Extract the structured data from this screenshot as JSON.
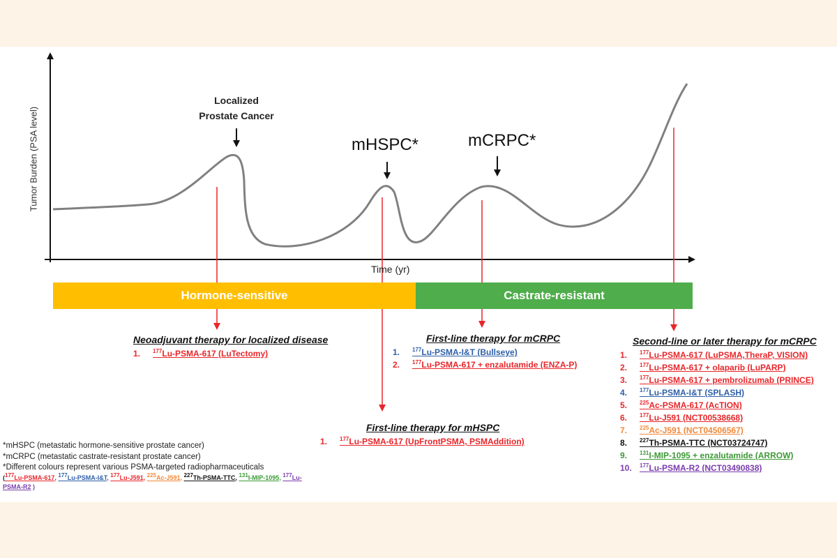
{
  "axis": {
    "ylabel": "Tumor Burden (PSA level)",
    "xlabel": "Time (yr)"
  },
  "phases": {
    "localized": "Localized\nProstate Cancer",
    "mhspc": "mHSPC*",
    "mcrpc": "mCRPC*"
  },
  "bars": {
    "hormone_sensitive": "Hormone-sensitive",
    "castrate_resistant": "Castrate-resistant"
  },
  "colors": {
    "hormone_bar": "#ffbf00",
    "castrate_bar": "#4fad4b",
    "arrow": "#e8262a",
    "red": "#e8262a",
    "blue": "#2e5fa8",
    "orange": "#f0883a",
    "black": "#111111",
    "green": "#3c9a35",
    "purple": "#7a3cac"
  },
  "sections": {
    "neoadjuvant": {
      "heading": "Neoadjuvant therapy for localized disease",
      "items": [
        {
          "num": "1.",
          "sup": "177",
          "text": "Lu-PSMA-617 (LuTectomy)",
          "color": "red"
        }
      ]
    },
    "first_line_mcrpc": {
      "heading": "First-line therapy for mCRPC",
      "items": [
        {
          "num": "1.",
          "sup": "177",
          "text": "Lu-PSMA-I&T (Bullseye)",
          "color": "blue"
        },
        {
          "num": "2.",
          "sup": "177",
          "text": "Lu-PSMA-617 + enzalutamide (ENZA-P)",
          "color": "red"
        }
      ]
    },
    "first_line_mhspc": {
      "heading": "First-line therapy for mHSPC",
      "items": [
        {
          "num": "1.",
          "sup": "177",
          "text": "Lu-PSMA-617 (UpFrontPSMA, PSMAddition)",
          "color": "red"
        }
      ]
    },
    "second_line_mcrpc": {
      "heading": "Second-line or later therapy for mCRPC",
      "items": [
        {
          "num": "1.",
          "sup": "177",
          "text": "Lu-PSMA-617 (LuPSMA,TheraP, VISION)",
          "color": "red"
        },
        {
          "num": "2.",
          "sup": "177",
          "text": "Lu-PSMA-617 + olaparib (LuPARP)",
          "color": "red"
        },
        {
          "num": "3.",
          "sup": "177",
          "text": "Lu-PSMA-617 + pembrolizumab (PRINCE)",
          "color": "red"
        },
        {
          "num": "4.",
          "sup": "177",
          "text": "Lu-PSMA-I&T (SPLASH)",
          "color": "blue"
        },
        {
          "num": "5.",
          "sup": "225",
          "text": "Ac-PSMA-617 (AcTION)",
          "color": "red"
        },
        {
          "num": "6.",
          "sup": "177",
          "text": "Lu-J591 (NCT00538668)",
          "color": "red"
        },
        {
          "num": "7.",
          "sup": "225",
          "text": "Ac-J591 (NCT04506567)",
          "color": "orange"
        },
        {
          "num": "8.",
          "sup": "227",
          "text": "Th-PSMA-TTC (NCT03724747)",
          "color": "black"
        },
        {
          "num": "9.",
          "sup": "131",
          "text": "I-MIP-1095 + enzalutamide (ARROW)",
          "color": "green"
        },
        {
          "num": "10.",
          "sup": "177",
          "text": "Lu-PSMA-R2 (NCT03490838)",
          "color": "purple"
        }
      ]
    }
  },
  "footnotes": {
    "line1": "*mHSPC (metastatic hormone-sensitive prostate cancer)",
    "line2": "*mCRPC (metastatic castrate-resistant prostate cancer)",
    "line3": "*Different colours represent various PSMA-targeted radiopharmaceuticals",
    "legend_open": "(",
    "legend_close": ")",
    "legend": [
      {
        "sup": "177",
        "text": "Lu-PSMA-617,",
        "color": "red"
      },
      {
        "sup": "177",
        "text": "Lu-PSMA-I&T,",
        "color": "blue"
      },
      {
        "sup": "177",
        "text": "Lu-J591,",
        "color": "red"
      },
      {
        "sup": "225",
        "text": "Ac-J591,",
        "color": "orange"
      },
      {
        "sup": "227",
        "text": "Th-PSMA-TTC,",
        "color": "black"
      },
      {
        "sup": "131",
        "text": "I-MIP-1095,",
        "color": "green"
      },
      {
        "sup": "177",
        "text": "Lu-PSMA-R2",
        "color": "purple"
      }
    ]
  }
}
